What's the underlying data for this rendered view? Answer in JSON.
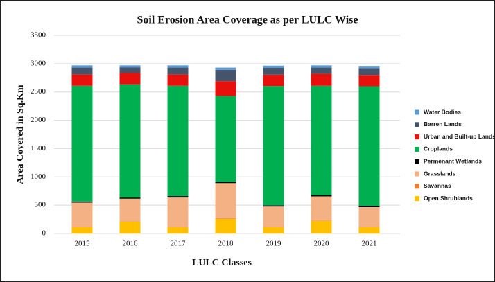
{
  "chart_data": {
    "type": "stacked_bar",
    "title": "Soil Erosion Area Coverage as per LULC Wise",
    "x_label": "LULC Classes",
    "y_label": "Area Covered in Sq.Km",
    "categories": [
      "2015",
      "2016",
      "2017",
      "2018",
      "2019",
      "2020",
      "2021"
    ],
    "series": [
      {
        "name": "Open Shrublands",
        "color": "#ffc000",
        "values": [
          110,
          210,
          110,
          260,
          110,
          220,
          110
        ]
      },
      {
        "name": "Savannas",
        "color": "#ed7d31",
        "values": [
          5,
          5,
          5,
          10,
          5,
          5,
          5
        ]
      },
      {
        "name": "Grasslands",
        "color": "#f4b183",
        "values": [
          430,
          400,
          520,
          620,
          360,
          430,
          350
        ]
      },
      {
        "name": "Permenant Wetlands",
        "color": "#000000",
        "values": [
          20,
          20,
          25,
          20,
          20,
          20,
          20
        ]
      },
      {
        "name": "Croplands",
        "color": "#00b050",
        "values": [
          2045,
          2000,
          1950,
          1520,
          2110,
          1935,
          2115
        ]
      },
      {
        "name": "Urban and Built-up Lands",
        "color": "#e8100c",
        "values": [
          200,
          200,
          200,
          260,
          200,
          210,
          200
        ]
      },
      {
        "name": "Barren Lands",
        "color": "#44546a",
        "values": [
          120,
          100,
          120,
          200,
          120,
          110,
          120
        ]
      },
      {
        "name": "Water Bodies",
        "color": "#5b9bd5",
        "values": [
          40,
          35,
          40,
          40,
          40,
          40,
          40
        ]
      }
    ],
    "ylim": [
      0,
      3500
    ],
    "yticks": [
      0,
      500,
      1000,
      1500,
      2000,
      2500,
      3000,
      3500
    ],
    "grid": true,
    "legend": "right"
  }
}
